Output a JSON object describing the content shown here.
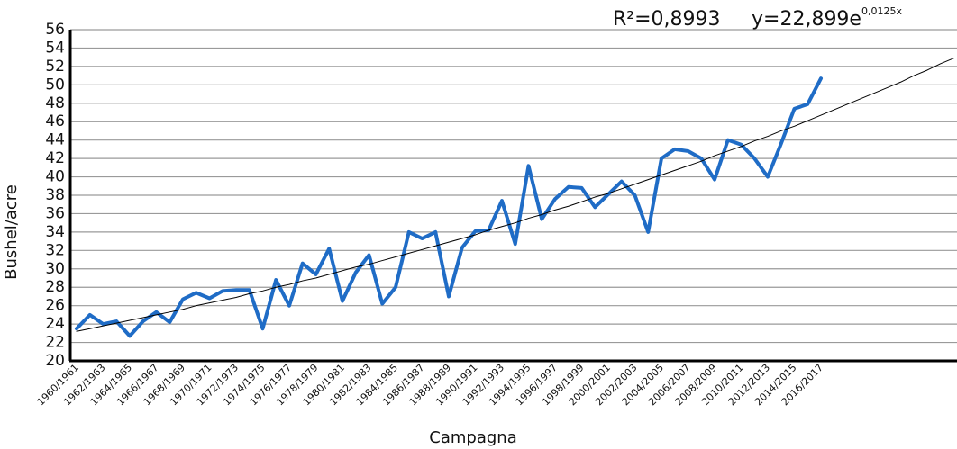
{
  "chart_data": {
    "type": "line",
    "x_label": "Campagna",
    "y_label": "Bushel/acre",
    "annotations": {
      "r_squared": "R²=0,8993",
      "equation": {
        "base": "y=22,899e",
        "exponent": "0,0125x"
      }
    },
    "categories": [
      "1960/1961",
      null,
      "1962/1963",
      null,
      "1964/1965",
      null,
      "1966/1967",
      null,
      "1968/1969",
      null,
      "1970/1971",
      null,
      "1972/1973",
      null,
      "1974/1975",
      null,
      "1976/1977",
      null,
      "1978/1979",
      null,
      "1980/1981",
      null,
      "1982/1983",
      null,
      "1984/1985",
      null,
      "1986/1987",
      null,
      "1988/1989",
      null,
      "1990/1991",
      null,
      "1992/1993",
      null,
      "1994/1995",
      null,
      "1996/1997",
      null,
      "1998/1999",
      null,
      "2000/2001",
      null,
      "2002/2003",
      null,
      "2004/2005",
      null,
      "2006/2007",
      null,
      "2008/2009",
      null,
      "2010/2011",
      null,
      "2012/2013",
      null,
      "2014/2015",
      null,
      "2016/2017",
      null,
      null,
      null,
      null,
      null,
      null,
      null,
      null,
      null,
      null
    ],
    "series": [
      {
        "color": "#1f6cc6",
        "width": 4,
        "values": [
          23.5,
          25.0,
          24.0,
          24.3,
          22.7,
          24.3,
          25.3,
          24.2,
          26.7,
          27.4,
          26.8,
          27.6,
          27.7,
          27.7,
          23.5,
          28.8,
          26.0,
          30.6,
          29.4,
          32.2,
          26.5,
          29.6,
          31.5,
          26.2,
          28.0,
          34.0,
          33.3,
          34.0,
          27.0,
          32.3,
          34.1,
          34.2,
          37.4,
          32.7,
          41.2,
          35.4,
          37.6,
          38.9,
          38.8,
          36.7,
          38.1,
          39.5,
          38.0,
          34.0,
          42.0,
          43.0,
          42.8,
          42.0,
          39.7,
          44.0,
          43.5,
          42.0,
          40.0,
          43.6,
          47.4,
          47.9,
          50.7,
          null,
          null,
          null,
          null,
          null,
          null,
          null,
          null,
          null,
          null
        ]
      },
      {
        "color": "#000000",
        "width": 1,
        "values": [
          23.2,
          23.5,
          23.8,
          24.1,
          24.4,
          24.7,
          25.0,
          25.3,
          25.6,
          26.0,
          26.3,
          26.6,
          26.9,
          27.3,
          27.6,
          28.0,
          28.3,
          28.7,
          29.0,
          29.4,
          29.8,
          30.2,
          30.5,
          30.9,
          31.3,
          31.7,
          32.1,
          32.5,
          32.9,
          33.3,
          33.7,
          34.2,
          34.6,
          35.0,
          35.5,
          35.9,
          36.4,
          36.8,
          37.3,
          37.8,
          38.2,
          38.7,
          39.2,
          39.7,
          40.2,
          40.7,
          41.2,
          41.7,
          42.3,
          42.8,
          43.3,
          43.9,
          44.4,
          45.0,
          45.5,
          46.1,
          46.7,
          47.3,
          47.9,
          48.5,
          49.1,
          49.7,
          50.3,
          51.0,
          51.6,
          52.3,
          52.9
        ]
      }
    ],
    "ylim": [
      20,
      56
    ],
    "yticks": [
      20,
      22,
      24,
      26,
      28,
      30,
      32,
      34,
      36,
      38,
      40,
      42,
      44,
      46,
      48,
      50,
      52,
      54,
      56
    ],
    "grid": true
  }
}
